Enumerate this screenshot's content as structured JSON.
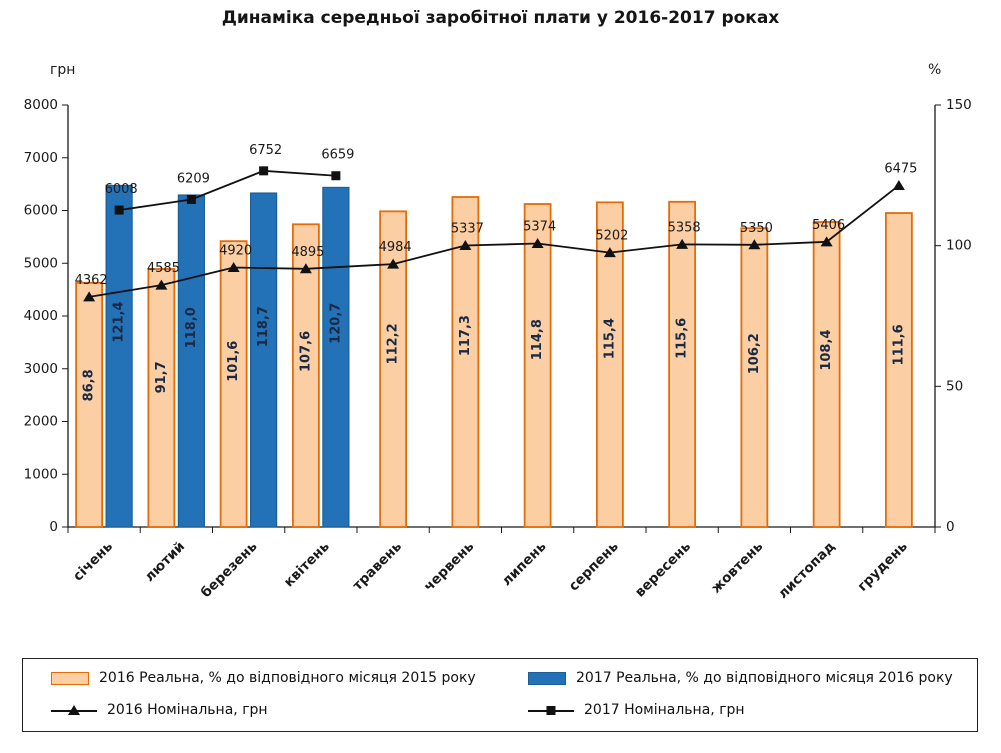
{
  "title": "Динаміка середньої заробітної плати у 2016-2017 роках",
  "chart_data": {
    "type": "bar",
    "title": "Динаміка середньої заробітної плати у 2016-2017 роках",
    "left_axis_unit": "грн",
    "right_axis_unit": "%",
    "left_axis_range": [
      0,
      8000
    ],
    "right_axis_range": [
      0,
      150
    ],
    "left_axis_ticks": [
      0,
      1000,
      2000,
      3000,
      4000,
      5000,
      6000,
      7000,
      8000
    ],
    "right_axis_ticks": [
      0,
      50,
      100,
      150
    ],
    "grid": false,
    "legend_position": "bottom",
    "categories": [
      "січень",
      "лютий",
      "березень",
      "квітень",
      "травень",
      "червень",
      "липень",
      "серпень",
      "вересень",
      "жовтень",
      "листопад",
      "грудень"
    ],
    "series": [
      {
        "name": "2016 Реальна, % до відповідного місяця 2015 року",
        "type": "bar",
        "axis": "right",
        "fill": "#FBCFA3",
        "stroke": "#E36C0A",
        "values": [
          86.8,
          91.7,
          101.6,
          107.6,
          112.2,
          117.3,
          114.8,
          115.4,
          115.6,
          106.2,
          108.4,
          111.6
        ],
        "labels": [
          "86,8",
          "91,7",
          "101,6",
          "107,6",
          "112,2",
          "117,3",
          "114,8",
          "115,4",
          "115,6",
          "106,2",
          "108,4",
          "111,6"
        ]
      },
      {
        "name": "2017 Реальна, % до відповідного місяця 2016 року",
        "type": "bar",
        "axis": "right",
        "fill": "#2372B8",
        "stroke": "#1D5E96",
        "values": [
          121.4,
          118.0,
          118.7,
          120.7
        ],
        "labels": [
          "121,4",
          "118,0",
          "118,7",
          "120,7"
        ]
      },
      {
        "name": "2016 Номінальна, грн",
        "type": "line",
        "axis": "left",
        "marker": "triangle",
        "color": "#111111",
        "values": [
          4362,
          4585,
          4920,
          4895,
          4984,
          5337,
          5374,
          5202,
          5358,
          5350,
          5406,
          6475
        ],
        "labels": [
          "4362",
          "4585",
          "4920",
          "4895",
          "4984",
          "5337",
          "5374",
          "5202",
          "5358",
          "5350",
          "5406",
          "6475"
        ]
      },
      {
        "name": "2017 Номінальна, грн",
        "type": "line",
        "axis": "left",
        "marker": "square",
        "color": "#111111",
        "values": [
          6008,
          6209,
          6752,
          6659
        ],
        "labels": [
          "6008",
          "6209",
          "6752",
          "6659"
        ]
      }
    ]
  }
}
